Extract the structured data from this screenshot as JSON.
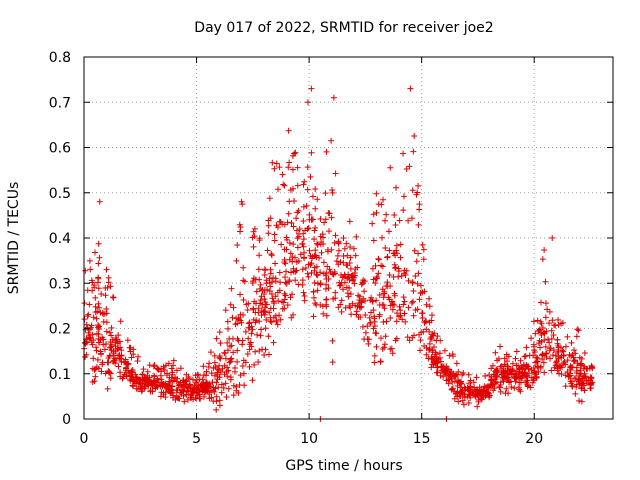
{
  "chart_data": {
    "type": "scatter",
    "title": "Day 017 of 2022, SRMTID for receiver joe2",
    "xlabel": "GPS time / hours",
    "ylabel": "SRMTID / TECUs",
    "xlim": [
      0,
      23.5
    ],
    "ylim": [
      0,
      0.8
    ],
    "xticks": [
      "0",
      "5",
      "10",
      "15",
      "20"
    ],
    "yticks": [
      "0",
      "0.1",
      "0.2",
      "0.3",
      "0.4",
      "0.5",
      "0.6",
      "0.7",
      "0.8"
    ],
    "xtick_values": [
      0,
      5,
      10,
      15,
      20
    ],
    "ytick_values": [
      0,
      0.1,
      0.2,
      0.3,
      0.4,
      0.5,
      0.6,
      0.7,
      0.8
    ],
    "grid": true,
    "marker": "+",
    "color": "#e00000",
    "series": [
      {
        "name": "SRMTID",
        "envelope_x": [
          0,
          0.5,
          1,
          1.5,
          2,
          2.5,
          3,
          3.5,
          4,
          4.5,
          5,
          5.5,
          6,
          6.5,
          7,
          7.5,
          8,
          8.5,
          9,
          9.5,
          10,
          10.5,
          11,
          11.5,
          12,
          12.5,
          13,
          13.5,
          14,
          14.5,
          15,
          15.5,
          16,
          16.5,
          17,
          17.5,
          18,
          18.5,
          19,
          19.5,
          20,
          20.5,
          21,
          21.5,
          22,
          22.5
        ],
        "envelope_median": [
          0.2,
          0.17,
          0.15,
          0.14,
          0.1,
          0.08,
          0.08,
          0.07,
          0.07,
          0.06,
          0.06,
          0.07,
          0.09,
          0.13,
          0.17,
          0.2,
          0.24,
          0.3,
          0.34,
          0.37,
          0.38,
          0.32,
          0.29,
          0.32,
          0.3,
          0.21,
          0.24,
          0.27,
          0.29,
          0.34,
          0.23,
          0.13,
          0.11,
          0.07,
          0.05,
          0.05,
          0.07,
          0.09,
          0.09,
          0.09,
          0.11,
          0.18,
          0.13,
          0.11,
          0.09,
          0.08
        ],
        "envelope_max": [
          0.36,
          0.48,
          0.33,
          0.24,
          0.17,
          0.13,
          0.12,
          0.12,
          0.13,
          0.11,
          0.1,
          0.13,
          0.25,
          0.3,
          0.48,
          0.42,
          0.44,
          0.63,
          0.66,
          0.6,
          0.73,
          0.5,
          0.71,
          0.47,
          0.46,
          0.3,
          0.52,
          0.56,
          0.6,
          0.73,
          0.46,
          0.21,
          0.16,
          0.14,
          0.1,
          0.1,
          0.12,
          0.17,
          0.15,
          0.15,
          0.22,
          0.4,
          0.24,
          0.2,
          0.2,
          0.12
        ],
        "notable_points": [
          {
            "x": 0.7,
            "y": 0.48
          },
          {
            "x": 1.0,
            "y": 0.33
          },
          {
            "x": 7.0,
            "y": 0.48
          },
          {
            "x": 10.1,
            "y": 0.73
          },
          {
            "x": 11.1,
            "y": 0.71
          },
          {
            "x": 14.5,
            "y": 0.73
          },
          {
            "x": 20.8,
            "y": 0.4
          },
          {
            "x": 10.5,
            "y": 0.0
          },
          {
            "x": 16.1,
            "y": 0.0
          }
        ]
      }
    ]
  }
}
